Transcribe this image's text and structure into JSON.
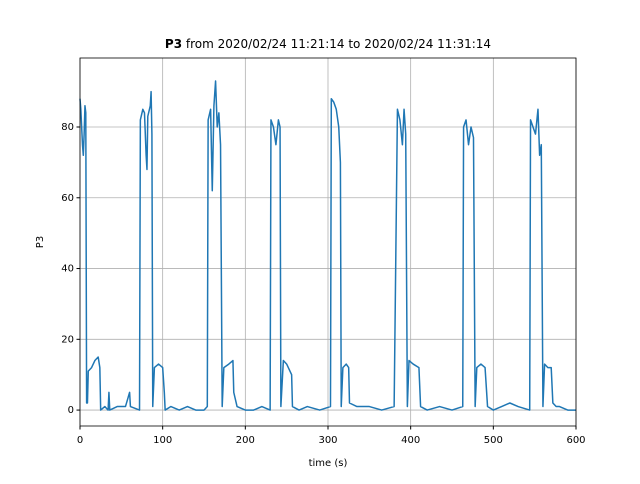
{
  "chart_data": {
    "type": "line",
    "title_bold": "P3",
    "title": "from 2020/02/24 11:21:14 to 2020/02/24 11:31:14",
    "xlabel": "time (s)",
    "ylabel": "P3",
    "x": [
      0,
      1,
      2,
      3,
      4,
      5,
      6,
      7,
      8,
      9,
      10,
      14,
      18,
      22,
      24,
      25,
      30,
      34,
      35,
      36,
      45,
      55,
      60,
      61,
      72,
      73,
      76,
      78,
      80,
      81,
      82,
      85,
      86,
      87,
      88,
      90,
      95,
      100,
      102,
      103,
      110,
      120,
      130,
      140,
      150,
      154,
      155,
      158,
      160,
      162,
      164,
      166,
      168,
      170,
      172,
      174,
      180,
      185,
      186,
      190,
      200,
      210,
      220,
      230,
      231,
      234,
      237,
      240,
      242,
      243,
      246,
      250,
      256,
      257,
      265,
      275,
      290,
      303,
      304,
      307,
      310,
      313,
      315,
      316,
      318,
      322,
      325,
      326,
      335,
      350,
      365,
      380,
      384,
      387,
      390,
      392,
      394,
      396,
      398,
      403,
      410,
      412,
      420,
      435,
      450,
      463,
      464,
      467,
      470,
      473,
      476,
      478,
      480,
      485,
      490,
      493,
      500,
      510,
      520,
      530,
      544,
      545,
      548,
      551,
      554,
      556,
      558,
      560,
      562,
      566,
      570,
      572,
      576,
      580,
      590,
      600
    ],
    "series": [
      {
        "name": "P3",
        "color": "#1f77b4",
        "values": [
          88,
          85,
          80,
          75,
          72,
          78,
          86,
          84,
          2,
          2,
          11,
          12,
          14,
          15,
          12,
          0,
          1,
          0,
          5,
          0,
          1,
          1,
          5,
          1,
          0,
          82,
          85,
          84,
          72,
          68,
          83,
          86,
          90,
          78,
          1,
          12,
          13,
          12,
          5,
          0,
          1,
          0,
          1,
          0,
          0,
          1,
          82,
          85,
          62,
          86,
          93,
          80,
          84,
          75,
          1,
          12,
          13,
          14,
          5,
          1,
          0,
          0,
          1,
          0,
          82,
          80,
          75,
          82,
          80,
          1,
          14,
          13,
          10,
          1,
          0,
          1,
          0,
          1,
          88,
          87,
          85,
          80,
          70,
          1,
          12,
          13,
          12,
          2,
          1,
          1,
          0,
          1,
          85,
          82,
          75,
          85,
          78,
          1,
          14,
          13,
          12,
          1,
          0,
          1,
          0,
          1,
          80,
          82,
          75,
          80,
          77,
          1,
          12,
          13,
          12,
          1,
          0,
          1,
          2,
          1,
          0,
          82,
          80,
          78,
          85,
          72,
          75,
          1,
          13,
          12,
          12,
          2,
          1,
          1,
          0,
          0
        ]
      }
    ],
    "xlim": [
      0,
      600
    ],
    "ylim": [
      -4.5,
      99.5
    ],
    "xticks": [
      0,
      100,
      200,
      300,
      400,
      500,
      600
    ],
    "yticks": [
      0,
      20,
      40,
      60,
      80
    ],
    "grid": true
  }
}
